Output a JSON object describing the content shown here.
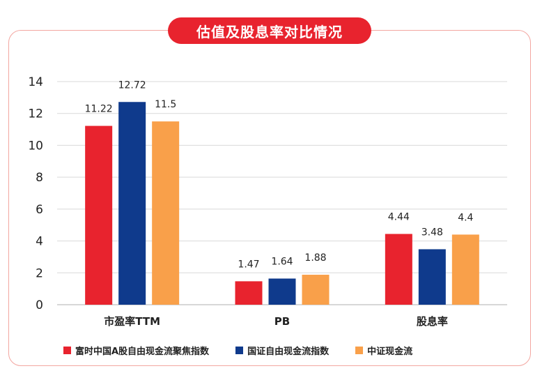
{
  "title": "估值及股息率对比情况",
  "colors": {
    "border": "#f3a6a0",
    "title_bg": "#e8232e",
    "series": [
      "#e8232e",
      "#0f3a8c",
      "#f9a04a"
    ]
  },
  "legend": [
    {
      "label": "富时中国A股自由现金流聚焦指数"
    },
    {
      "label": "国证自由现金流指数"
    },
    {
      "label": "中证现金流"
    }
  ],
  "chart_data": {
    "type": "bar",
    "categories": [
      "市盈率TTM",
      "PB",
      "股息率"
    ],
    "series": [
      {
        "name": "富时中国A股自由现金流聚焦指数",
        "values": [
          11.22,
          1.47,
          4.44
        ]
      },
      {
        "name": "国证自由现金流指数",
        "values": [
          12.72,
          1.64,
          3.48
        ]
      },
      {
        "name": "中证现金流",
        "values": [
          11.5,
          1.88,
          4.4
        ]
      }
    ],
    "ylim": [
      0,
      14
    ],
    "yticks": [
      0,
      2,
      4,
      6,
      8,
      10,
      12,
      14
    ],
    "grid": true,
    "legend_position": "bottom",
    "title": "估值及股息率对比情况"
  }
}
